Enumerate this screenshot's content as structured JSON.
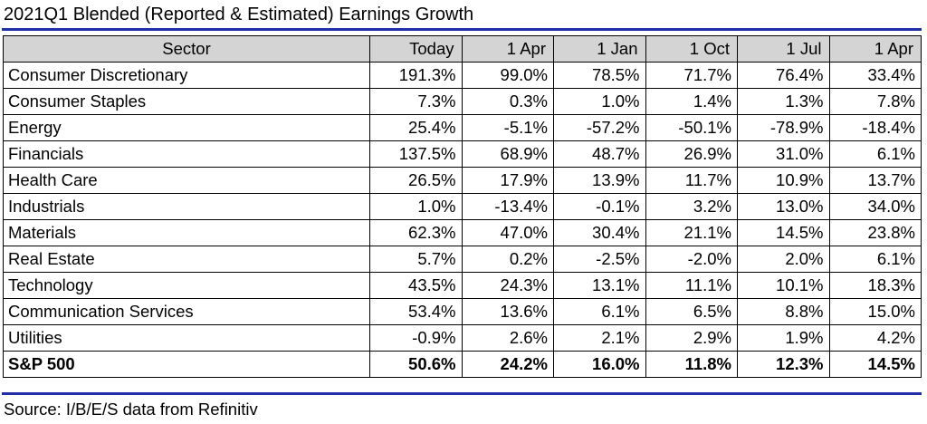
{
  "title": "2021Q1 Blended (Reported & Estimated) Earnings Growth",
  "table": {
    "headers": [
      "Sector",
      "Today",
      "1 Apr",
      "1 Jan",
      "1 Oct",
      "1 Jul",
      "1 Apr"
    ],
    "rows": [
      {
        "sector": "Consumer Discretionary",
        "values": [
          "191.3%",
          "99.0%",
          "78.5%",
          "71.7%",
          "76.4%",
          "33.4%"
        ]
      },
      {
        "sector": "Consumer Staples",
        "values": [
          "7.3%",
          "0.3%",
          "1.0%",
          "1.4%",
          "1.3%",
          "7.8%"
        ]
      },
      {
        "sector": "Energy",
        "values": [
          "25.4%",
          "-5.1%",
          "-57.2%",
          "-50.1%",
          "-78.9%",
          "-18.4%"
        ]
      },
      {
        "sector": "Financials",
        "values": [
          "137.5%",
          "68.9%",
          "48.7%",
          "26.9%",
          "31.0%",
          "6.1%"
        ]
      },
      {
        "sector": "Health Care",
        "values": [
          "26.5%",
          "17.9%",
          "13.9%",
          "11.7%",
          "10.9%",
          "13.7%"
        ]
      },
      {
        "sector": "Industrials",
        "values": [
          "1.0%",
          "-13.4%",
          "-0.1%",
          "3.2%",
          "13.0%",
          "34.0%"
        ]
      },
      {
        "sector": "Materials",
        "values": [
          "62.3%",
          "47.0%",
          "30.4%",
          "21.1%",
          "14.5%",
          "23.8%"
        ]
      },
      {
        "sector": "Real Estate",
        "values": [
          "5.7%",
          "0.2%",
          "-2.5%",
          "-2.0%",
          "2.0%",
          "6.1%"
        ]
      },
      {
        "sector": "Technology",
        "values": [
          "43.5%",
          "24.3%",
          "13.1%",
          "11.1%",
          "10.1%",
          "18.3%"
        ]
      },
      {
        "sector": "Communication Services",
        "values": [
          "53.4%",
          "13.6%",
          "6.1%",
          "6.5%",
          "8.8%",
          "15.0%"
        ]
      },
      {
        "sector": "Utilities",
        "values": [
          "-0.9%",
          "2.6%",
          "2.1%",
          "2.9%",
          "1.9%",
          "4.2%"
        ]
      }
    ],
    "total": {
      "sector": "S&P 500",
      "values": [
        "50.6%",
        "24.2%",
        "16.0%",
        "11.8%",
        "12.3%",
        "14.5%"
      ]
    }
  },
  "source": "Source: I/B/E/S data from Refinitiv",
  "colors": {
    "rule": "#1f2fa8",
    "header_background": "#d4d4d4"
  }
}
